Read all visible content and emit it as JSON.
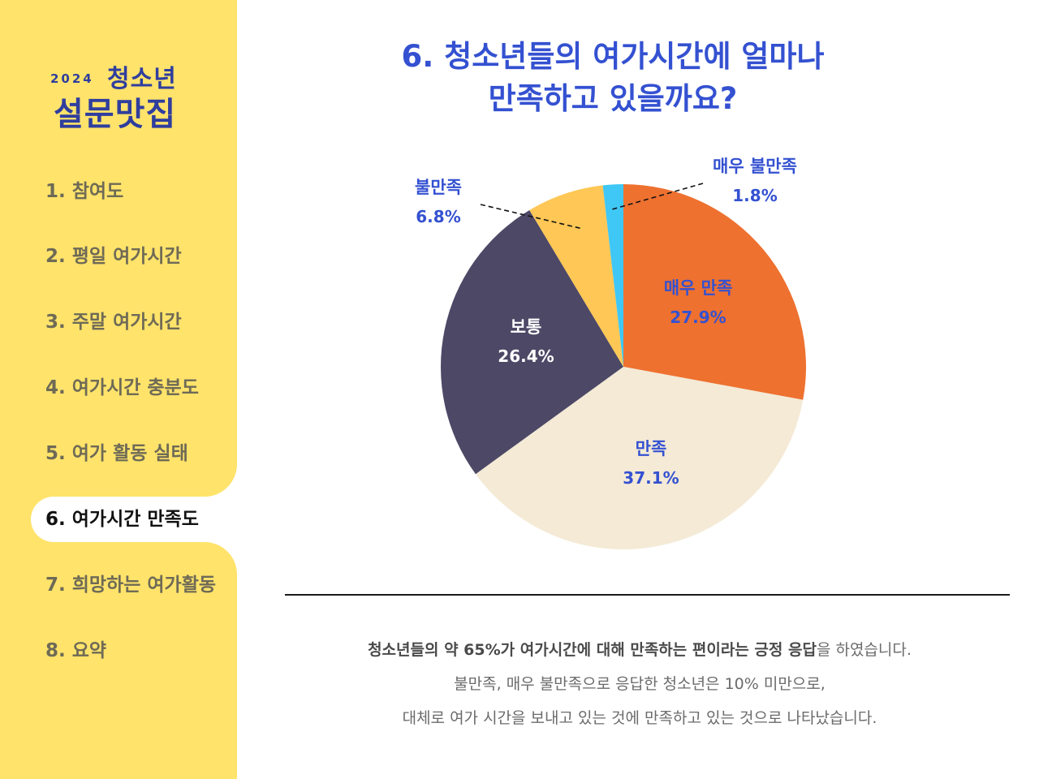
{
  "sidebar": {
    "logo": {
      "year": "2024",
      "top": "청소년",
      "main": "설문맛집"
    },
    "items": [
      {
        "label": "1. 참여도"
      },
      {
        "label": "2. 평일 여가시간"
      },
      {
        "label": "3. 주말 여가시간"
      },
      {
        "label": "4. 여가시간 충분도"
      },
      {
        "label": "5. 여가 활동 실태"
      },
      {
        "label": "6. 여가시간 만족도",
        "active": true
      },
      {
        "label": "7. 희망하는 여가활동"
      },
      {
        "label": "8. 요약"
      }
    ]
  },
  "main": {
    "title_line1": "6. 청소년들의 여가시간에 얼마나",
    "title_line2": "만족하고 있을까요?",
    "summary": {
      "line1_bold": "청소년들의 약 65%가  여가시간에 대해 만족하는 편이라는 긍정 응답",
      "line1_rest": "을 하였습니다.",
      "line2": "불만족, 매우 불만족으로 응답한 청소년은 10% 미만으로,",
      "line3": "대체로 여가 시간을 보내고 있는 것에 만족하고 있는 것으로 나타났습니다."
    }
  },
  "colors": {
    "sidebar_bg": "#FFE36B",
    "accent_blue": "#3451D1",
    "very_satisfied": "#EE7130",
    "satisfied": "#F4EAD6",
    "neutral": "#4C4866",
    "dissatisfied": "#FFC755",
    "very_dissatisfied": "#3FC7F5"
  },
  "chart_data": {
    "type": "pie",
    "start": "12 o'clock, clockwise",
    "slices": [
      {
        "label": "매우 만족",
        "value": 27.9,
        "value_label": "27.9%",
        "color": "#EE7130",
        "label_color": "#3451D1"
      },
      {
        "label": "만족",
        "value": 37.1,
        "value_label": "37.1%",
        "color": "#F4EAD6",
        "label_color": "#3451D1"
      },
      {
        "label": "보통",
        "value": 26.4,
        "value_label": "26.4%",
        "color": "#4C4866",
        "label_color": "#ffffff"
      },
      {
        "label": "불만족",
        "value": 6.8,
        "value_label": "6.8%",
        "color": "#FFC755",
        "label_color": "#3451D1"
      },
      {
        "label": "매우 불만족",
        "value": 1.8,
        "value_label": "1.8%",
        "color": "#3FC7F5",
        "label_color": "#3451D1"
      }
    ]
  }
}
